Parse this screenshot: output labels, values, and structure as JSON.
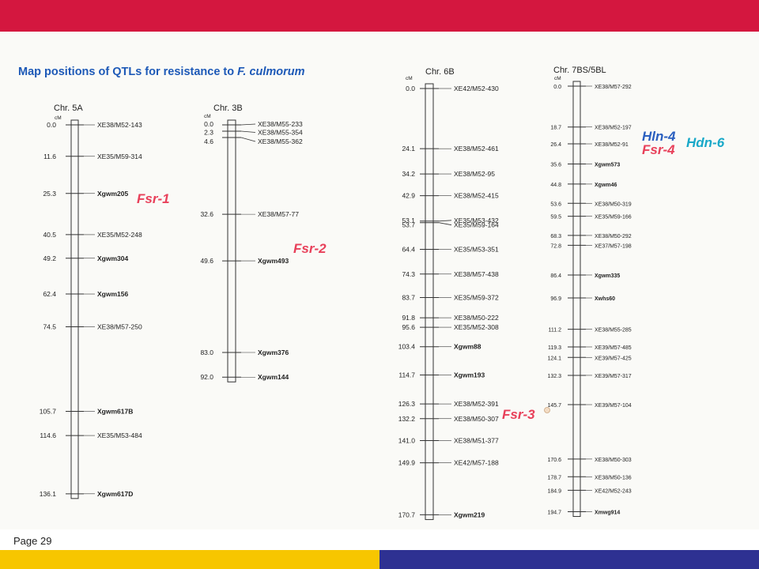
{
  "header": {
    "accent_color": "#d4173f"
  },
  "title": {
    "prefix": "Map positions of QTLs for resistance to ",
    "species": "F. culmorum"
  },
  "chromosomes": [
    {
      "name": "Chr. 5A",
      "unit": "cM",
      "markers": [
        {
          "pos": "0.0",
          "name": "XE38/M52-143",
          "bold": false
        },
        {
          "pos": "11.6",
          "name": "XE35/M59-314",
          "bold": false
        },
        {
          "pos": "25.3",
          "name": "Xgwm205",
          "bold": true
        },
        {
          "pos": "40.5",
          "name": "XE35/M52-248",
          "bold": false
        },
        {
          "pos": "49.2",
          "name": "Xgwm304",
          "bold": true
        },
        {
          "pos": "62.4",
          "name": "Xgwm156",
          "bold": true
        },
        {
          "pos": "74.5",
          "name": "XE38/M57-250",
          "bold": false
        },
        {
          "pos": "105.7",
          "name": "Xgwm617B",
          "bold": true
        },
        {
          "pos": "114.6",
          "name": "XE35/M53-484",
          "bold": false
        },
        {
          "pos": "136.1",
          "name": "Xgwm617D",
          "bold": true
        }
      ],
      "qtls": [
        {
          "name": "Fsr-1",
          "color": "#e8405a",
          "near": "25.3"
        }
      ]
    },
    {
      "name": "Chr. 3B",
      "unit": "cM",
      "markers": [
        {
          "pos": "0.0",
          "name": "XE38/M55-233",
          "bold": false
        },
        {
          "pos": "2.3",
          "name": "XE38/M55-354",
          "bold": false
        },
        {
          "pos": "4.6",
          "name": "XE38/M55-362",
          "bold": false
        },
        {
          "pos": "32.6",
          "name": "XE38/M57-77",
          "bold": false
        },
        {
          "pos": "49.6",
          "name": "Xgwm493",
          "bold": true
        },
        {
          "pos": "83.0",
          "name": "Xgwm376",
          "bold": true
        },
        {
          "pos": "92.0",
          "name": "Xgwm144",
          "bold": true
        }
      ],
      "qtls": [
        {
          "name": "Fsr-2",
          "color": "#e8405a",
          "near": "49.6"
        }
      ]
    },
    {
      "name": "Chr. 6B",
      "unit": "cM",
      "markers": [
        {
          "pos": "0.0",
          "name": "XE42/M52-430",
          "bold": false
        },
        {
          "pos": "24.1",
          "name": "XE38/M52-461",
          "bold": false
        },
        {
          "pos": "34.2",
          "name": "XE38/M52-95",
          "bold": false
        },
        {
          "pos": "42.9",
          "name": "XE38/M52-415",
          "bold": false
        },
        {
          "pos": "53.1",
          "name": "XE35/M53-432",
          "bold": false
        },
        {
          "pos": "53.7",
          "name": "XE35/M59-164",
          "bold": false
        },
        {
          "pos": "64.4",
          "name": "XE35/M53-351",
          "bold": false
        },
        {
          "pos": "74.3",
          "name": "XE38/M57-438",
          "bold": false
        },
        {
          "pos": "83.7",
          "name": "XE35/M59-372",
          "bold": false
        },
        {
          "pos": "91.8",
          "name": "XE38/M50-222",
          "bold": false
        },
        {
          "pos": "95.6",
          "name": "XE35/M52-308",
          "bold": false
        },
        {
          "pos": "103.4",
          "name": "Xgwm88",
          "bold": true
        },
        {
          "pos": "114.7",
          "name": "Xgwm193",
          "bold": true
        },
        {
          "pos": "126.3",
          "name": "XE38/M52-391",
          "bold": false
        },
        {
          "pos": "132.2",
          "name": "XE38/M50-307",
          "bold": false
        },
        {
          "pos": "141.0",
          "name": "XE38/M51-377",
          "bold": false
        },
        {
          "pos": "149.9",
          "name": "XE42/M57-188",
          "bold": false
        },
        {
          "pos": "170.7",
          "name": "Xgwm219",
          "bold": true
        }
      ],
      "qtls": [
        {
          "name": "Fsr-3",
          "color": "#e8405a",
          "near": "132.2"
        }
      ]
    },
    {
      "name": "Chr. 7BS/5BL",
      "unit": "cM",
      "markers": [
        {
          "pos": "0.0",
          "name": "XE38/M57-292",
          "bold": false
        },
        {
          "pos": "18.7",
          "name": "XE38/M52-197",
          "bold": false
        },
        {
          "pos": "26.4",
          "name": "XE38/M52-91",
          "bold": false
        },
        {
          "pos": "35.6",
          "name": "Xgwm573",
          "bold": true
        },
        {
          "pos": "44.8",
          "name": "Xgwm46",
          "bold": true
        },
        {
          "pos": "53.6",
          "name": "XE38/M50-319",
          "bold": false
        },
        {
          "pos": "59.5",
          "name": "XE35/M59-166",
          "bold": false
        },
        {
          "pos": "68.3",
          "name": "XE38/M50-292",
          "bold": false
        },
        {
          "pos": "72.8",
          "name": "XE37/M57-198",
          "bold": false
        },
        {
          "pos": "86.4",
          "name": "Xgwm335",
          "bold": true
        },
        {
          "pos": "96.9",
          "name": "Xwhs60",
          "bold": true
        },
        {
          "pos": "111.2",
          "name": "XE38/M55-285",
          "bold": false
        },
        {
          "pos": "119.3",
          "name": "XE39/M57-485",
          "bold": false
        },
        {
          "pos": "124.1",
          "name": "XE39/M57-425",
          "bold": false
        },
        {
          "pos": "132.3",
          "name": "XE39/M57-317",
          "bold": false
        },
        {
          "pos": "145.7",
          "name": "XE39/M57-104",
          "bold": false
        },
        {
          "pos": "170.6",
          "name": "XE38/M50-303",
          "bold": false
        },
        {
          "pos": "178.7",
          "name": "XE38/M50-136",
          "bold": false
        },
        {
          "pos": "184.9",
          "name": "XE42/M52-243",
          "bold": false
        },
        {
          "pos": "194.7",
          "name": "Xmwg914",
          "bold": true
        }
      ],
      "qtls": [
        {
          "name": "Hln-4",
          "color": "#2a5fbf",
          "near": "18.7"
        },
        {
          "name": "Hdn-6",
          "color": "#18a8c8",
          "near": "18.7"
        },
        {
          "name": "Fsr-4",
          "color": "#e8405a",
          "near": "26.4"
        }
      ]
    }
  ],
  "footer": {
    "page_label": "Page 29",
    "yellow": "#f7c600",
    "blue": "#2e3192"
  }
}
